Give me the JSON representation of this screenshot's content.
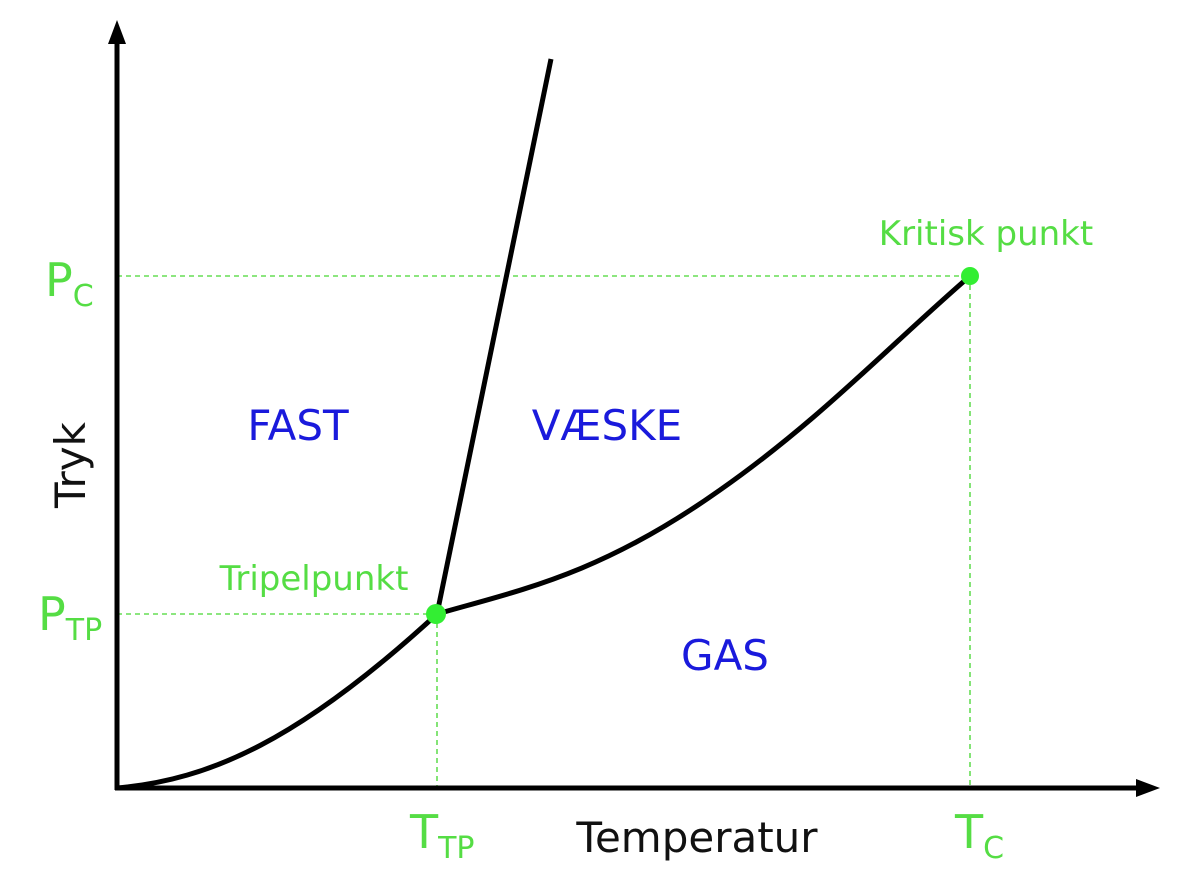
{
  "colors": {
    "curve": "#000000",
    "axis": "#000000",
    "accent": "#55dd44",
    "guide": "#66dd55",
    "region": "#1a1adc",
    "label": "#111111"
  },
  "axes": {
    "x_label": "Temperatur",
    "y_label": "Tryk"
  },
  "regions": {
    "solid": "FAST",
    "liquid": "VÆSKE",
    "gas": "GAS"
  },
  "points": {
    "triple": {
      "label": "Tripelpunkt"
    },
    "critical": {
      "label": "Kritisk punkt"
    }
  },
  "ticks": {
    "t_tp": {
      "main": "T",
      "sub": "TP"
    },
    "t_c": {
      "main": "T",
      "sub": "C"
    },
    "p_tp": {
      "main": "P",
      "sub": "TP"
    },
    "p_c": {
      "main": "P",
      "sub": "C"
    }
  }
}
